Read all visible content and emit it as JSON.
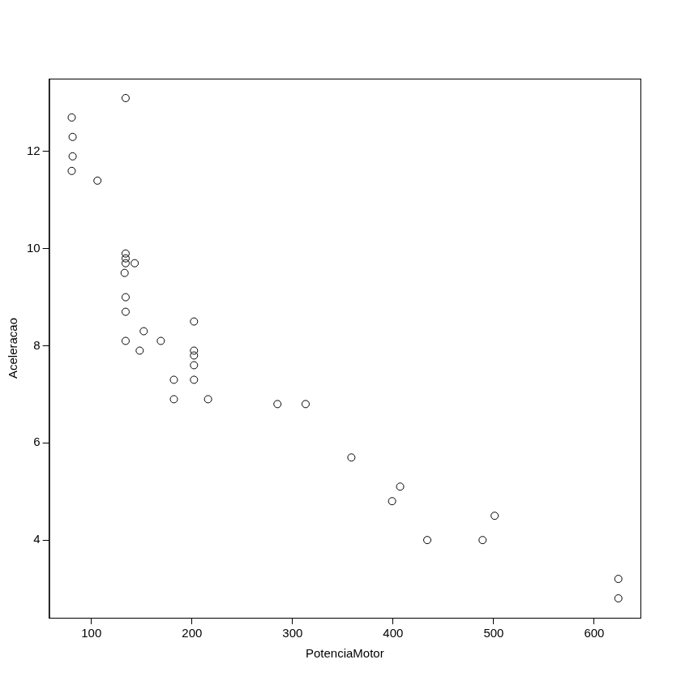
{
  "chart_data": {
    "type": "scatter",
    "x_label": "PotenciaMotor",
    "y_label": "Aceleracao",
    "x": [
      80.4,
      81.3,
      81.3,
      80.4,
      106,
      134,
      134,
      134,
      134,
      143,
      133,
      134,
      134,
      134,
      152,
      148,
      169,
      202,
      202,
      202,
      202,
      202,
      182,
      182,
      216,
      285,
      313,
      358.5,
      407,
      399,
      434,
      489,
      501,
      624,
      624
    ],
    "values": [
      12.7,
      12.3,
      11.9,
      11.6,
      11.4,
      13.1,
      9.9,
      9.8,
      9.7,
      9.7,
      9.5,
      9.0,
      8.7,
      8.1,
      8.3,
      7.9,
      8.1,
      8.5,
      7.9,
      7.8,
      7.6,
      7.3,
      7.3,
      6.9,
      6.9,
      6.8,
      6.8,
      5.7,
      5.1,
      4.8,
      4.0,
      4.0,
      4.5,
      3.2,
      2.8
    ],
    "color": "#000000",
    "marker": "open_circle",
    "xlim": [
      58,
      646
    ],
    "xticks": [
      100,
      200,
      300,
      400,
      500,
      600
    ],
    "ylim": [
      2.4,
      13.5
    ],
    "yticks": [
      4,
      6,
      8,
      10,
      12
    ],
    "grid": false
  }
}
